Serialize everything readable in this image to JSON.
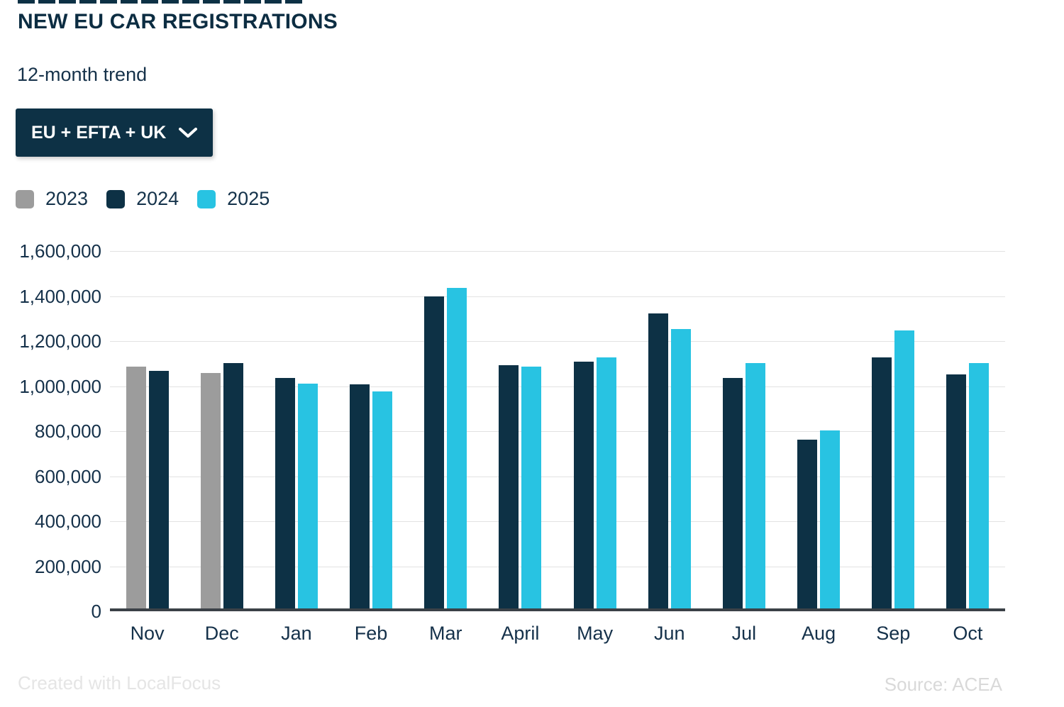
{
  "page": {
    "title": "NEW EU CAR REGISTRATIONS",
    "subtitle": "12-month trend"
  },
  "controls": {
    "region_dropdown": {
      "value": "EU + EFTA + UK"
    }
  },
  "chart_data": {
    "type": "bar",
    "title": "NEW EU CAR REGISTRATIONS",
    "subtitle": "12-month trend",
    "categories": [
      "Nov",
      "Dec",
      "Jan",
      "Feb",
      "Mar",
      "April",
      "May",
      "Jun",
      "Jul",
      "Aug",
      "Sep",
      "Oct"
    ],
    "series": [
      {
        "name": "2023",
        "color": "#9c9c9c",
        "values": [
          1075000,
          1045000,
          null,
          null,
          null,
          null,
          null,
          null,
          null,
          null,
          null,
          null
        ]
      },
      {
        "name": "2024",
        "color": "#0d3145",
        "values": [
          1055000,
          1090000,
          1025000,
          995000,
          1385000,
          1080000,
          1095000,
          1310000,
          1025000,
          750000,
          1115000,
          1040000
        ]
      },
      {
        "name": "2025",
        "color": "#28c3e2",
        "values": [
          null,
          null,
          1000000,
          965000,
          1425000,
          1075000,
          1115000,
          1240000,
          1090000,
          790000,
          1235000,
          1090000
        ]
      }
    ],
    "ylim": [
      0,
      1600000
    ],
    "ytick_step": 200000,
    "ytick_labels": [
      "0",
      "200,000",
      "400,000",
      "600,000",
      "800,000",
      "1,000,000",
      "1,200,000",
      "1,400,000",
      "1,600,000"
    ],
    "grid": true,
    "legend_position": "top-left",
    "ylabel": "",
    "xlabel": ""
  },
  "colors": {
    "accent_navy": "#0d3145",
    "accent_cyan": "#28c3e2",
    "neutral_gray": "#9c9c9c",
    "grid_color": "#e2e2e2",
    "axis_color": "#3b4147",
    "text_color": "#15314a"
  },
  "footer": {
    "credit": "Created with LocalFocus",
    "source": "Source: ACEA"
  }
}
